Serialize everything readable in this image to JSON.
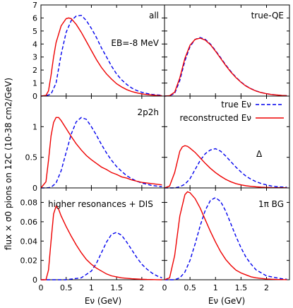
{
  "chart_data": {
    "type": "line",
    "figure": {
      "ylabel": "flux × σ0 pions on 12C (10-38 cm2/GeV)",
      "xlabel": "Eν (GeV)",
      "legend": {
        "placement": "middle-right panel, top"
      }
    },
    "colors": {
      "true": "#0000ee",
      "reconstructed": "#ee0000",
      "frame": "#000000"
    },
    "series_styles": [
      {
        "key": "true",
        "dashed": true
      },
      {
        "key": "reconstructed",
        "dashed": false
      }
    ],
    "x_ticks": [
      0,
      0.5,
      1,
      1.5,
      2
    ],
    "x_range": [
      0,
      2.45
    ],
    "panels": [
      {
        "id": "all",
        "label": "all",
        "extra_label_main": "EB=-8 MeV",
        "ylim": [
          0,
          7
        ],
        "y_ticks": [
          0,
          1,
          2,
          3,
          4,
          5,
          6,
          7
        ],
        "true": {
          "x": [
            0.0,
            0.1,
            0.2,
            0.3,
            0.4,
            0.5,
            0.6,
            0.7,
            0.8,
            0.9,
            1.0,
            1.1,
            1.2,
            1.3,
            1.4,
            1.5,
            1.6,
            1.7,
            1.8,
            1.9,
            2.0,
            2.1,
            2.2,
            2.3,
            2.4
          ],
          "y": [
            0.0,
            0.02,
            0.15,
            1.0,
            3.2,
            4.9,
            5.8,
            6.15,
            6.2,
            5.8,
            5.2,
            4.5,
            3.7,
            3.0,
            2.3,
            1.7,
            1.25,
            0.9,
            0.62,
            0.43,
            0.29,
            0.2,
            0.13,
            0.09,
            0.06
          ]
        },
        "reconstructed": {
          "x": [
            0.0,
            0.1,
            0.15,
            0.2,
            0.25,
            0.3,
            0.4,
            0.5,
            0.55,
            0.6,
            0.7,
            0.8,
            0.9,
            1.0,
            1.1,
            1.2,
            1.3,
            1.4,
            1.5,
            1.6,
            1.7,
            1.8,
            1.9,
            2.0,
            2.1,
            2.2,
            2.3,
            2.4
          ],
          "y": [
            0.0,
            0.05,
            0.4,
            1.6,
            3.0,
            4.1,
            5.4,
            5.95,
            6.0,
            5.95,
            5.5,
            4.9,
            4.2,
            3.5,
            2.8,
            2.2,
            1.7,
            1.3,
            0.95,
            0.7,
            0.5,
            0.35,
            0.25,
            0.17,
            0.12,
            0.08,
            0.05,
            0.03
          ]
        }
      },
      {
        "id": "true-qe",
        "label": "true-QE",
        "ylim": [
          0,
          7
        ],
        "y_ticks": [
          0,
          1,
          2,
          3,
          4,
          5,
          6,
          7
        ],
        "true": {
          "x": [
            0.0,
            0.1,
            0.2,
            0.3,
            0.4,
            0.5,
            0.6,
            0.7,
            0.8,
            0.9,
            1.0,
            1.1,
            1.2,
            1.3,
            1.4,
            1.5,
            1.6,
            1.7,
            1.8,
            1.9,
            2.0,
            2.1,
            2.2,
            2.3,
            2.4
          ],
          "y": [
            0.0,
            0.02,
            0.2,
            1.2,
            2.7,
            3.8,
            4.35,
            4.5,
            4.35,
            4.0,
            3.5,
            2.95,
            2.4,
            1.9,
            1.45,
            1.08,
            0.78,
            0.56,
            0.39,
            0.27,
            0.18,
            0.12,
            0.08,
            0.05,
            0.03
          ]
        },
        "reconstructed": {
          "x": [
            0.0,
            0.1,
            0.2,
            0.3,
            0.4,
            0.5,
            0.6,
            0.7,
            0.8,
            0.9,
            1.0,
            1.1,
            1.2,
            1.3,
            1.4,
            1.5,
            1.6,
            1.7,
            1.8,
            1.9,
            2.0,
            2.1,
            2.2,
            2.3,
            2.4
          ],
          "y": [
            0.0,
            0.03,
            0.3,
            1.4,
            2.9,
            3.9,
            4.35,
            4.45,
            4.3,
            3.95,
            3.45,
            2.9,
            2.35,
            1.85,
            1.42,
            1.06,
            0.76,
            0.55,
            0.38,
            0.26,
            0.18,
            0.12,
            0.08,
            0.05,
            0.03
          ]
        }
      },
      {
        "id": "2p2h",
        "label": "2p2h",
        "ylim": [
          0,
          1.5
        ],
        "y_ticks": [
          0,
          0.5,
          1
        ],
        "true": {
          "x": [
            0.0,
            0.1,
            0.2,
            0.3,
            0.4,
            0.5,
            0.6,
            0.7,
            0.8,
            0.9,
            1.0,
            1.1,
            1.2,
            1.3,
            1.4,
            1.5,
            1.6,
            1.7,
            1.8,
            1.9,
            2.0,
            2.1,
            2.2,
            2.3,
            2.4
          ],
          "y": [
            0.0,
            0.0,
            0.01,
            0.08,
            0.28,
            0.58,
            0.88,
            1.08,
            1.15,
            1.12,
            1.0,
            0.86,
            0.71,
            0.57,
            0.45,
            0.35,
            0.27,
            0.2,
            0.15,
            0.11,
            0.08,
            0.06,
            0.04,
            0.03,
            0.02
          ]
        },
        "reconstructed": {
          "x": [
            0.0,
            0.1,
            0.15,
            0.2,
            0.25,
            0.3,
            0.35,
            0.4,
            0.5,
            0.6,
            0.7,
            0.8,
            0.9,
            1.0,
            1.1,
            1.2,
            1.3,
            1.4,
            1.5,
            1.6,
            1.7,
            1.8,
            1.9,
            2.0,
            2.1,
            2.2,
            2.3,
            2.4
          ],
          "y": [
            0.0,
            0.1,
            0.45,
            0.85,
            1.07,
            1.15,
            1.15,
            1.1,
            0.97,
            0.84,
            0.72,
            0.62,
            0.53,
            0.46,
            0.4,
            0.34,
            0.3,
            0.25,
            0.22,
            0.18,
            0.16,
            0.13,
            0.11,
            0.09,
            0.08,
            0.07,
            0.06,
            0.05
          ]
        }
      },
      {
        "id": "delta",
        "label": "Δ",
        "legend": [
          {
            "key": "true",
            "text": "true Eν"
          },
          {
            "key": "reconstructed",
            "text": "reconstructed Eν"
          }
        ],
        "ylim": [
          0,
          1.5
        ],
        "y_ticks": [
          0,
          0.5,
          1
        ],
        "true": {
          "x": [
            0.0,
            0.1,
            0.2,
            0.3,
            0.4,
            0.5,
            0.6,
            0.7,
            0.8,
            0.9,
            1.0,
            1.1,
            1.2,
            1.3,
            1.4,
            1.5,
            1.6,
            1.7,
            1.8,
            1.9,
            2.0,
            2.1,
            2.2,
            2.3,
            2.4
          ],
          "y": [
            0.0,
            0.0,
            0.0,
            0.02,
            0.06,
            0.15,
            0.3,
            0.45,
            0.56,
            0.62,
            0.64,
            0.6,
            0.52,
            0.43,
            0.34,
            0.26,
            0.19,
            0.14,
            0.1,
            0.07,
            0.05,
            0.03,
            0.02,
            0.015,
            0.01
          ]
        },
        "reconstructed": {
          "x": [
            0.0,
            0.1,
            0.2,
            0.3,
            0.35,
            0.4,
            0.45,
            0.5,
            0.6,
            0.7,
            0.8,
            0.9,
            1.0,
            1.1,
            1.2,
            1.3,
            1.4,
            1.5,
            1.6,
            1.7,
            1.8,
            1.9,
            2.0,
            2.1,
            2.2,
            2.3,
            2.4
          ],
          "y": [
            0.0,
            0.03,
            0.25,
            0.6,
            0.67,
            0.69,
            0.68,
            0.65,
            0.58,
            0.49,
            0.4,
            0.32,
            0.25,
            0.19,
            0.14,
            0.1,
            0.07,
            0.05,
            0.035,
            0.025,
            0.017,
            0.012,
            0.008,
            0.005,
            0.004,
            0.003,
            0.002
          ]
        }
      },
      {
        "id": "higher-res-dis",
        "label": "higher resonances + DIS",
        "ylim": [
          0,
          0.095
        ],
        "y_ticks": [
          0,
          0.02,
          0.04,
          0.06,
          0.08
        ],
        "true": {
          "x": [
            0.0,
            0.5,
            0.8,
            1.0,
            1.1,
            1.2,
            1.3,
            1.4,
            1.5,
            1.6,
            1.7,
            1.8,
            1.9,
            2.0,
            2.1,
            2.2,
            2.3,
            2.4
          ],
          "y": [
            0.0,
            0.0,
            0.002,
            0.009,
            0.017,
            0.028,
            0.039,
            0.047,
            0.049,
            0.046,
            0.039,
            0.031,
            0.023,
            0.016,
            0.011,
            0.007,
            0.004,
            0.002
          ]
        },
        "reconstructed": {
          "x": [
            0.0,
            0.1,
            0.15,
            0.2,
            0.25,
            0.3,
            0.35,
            0.4,
            0.5,
            0.6,
            0.7,
            0.8,
            0.9,
            1.0,
            1.1,
            1.2,
            1.3,
            1.4,
            1.5,
            1.6,
            1.7,
            1.8,
            1.9,
            2.0,
            2.1,
            2.2,
            2.3,
            2.4
          ],
          "y": [
            0.0,
            0.0,
            0.01,
            0.04,
            0.068,
            0.076,
            0.073,
            0.066,
            0.055,
            0.045,
            0.036,
            0.028,
            0.021,
            0.016,
            0.012,
            0.009,
            0.006,
            0.004,
            0.003,
            0.002,
            0.0015,
            0.001,
            0.0007,
            0.0005,
            0.0003,
            0.0002,
            0.0001,
            0.0
          ]
        }
      },
      {
        "id": "1pi-bg",
        "label": "1π BG",
        "ylim": [
          0,
          0.095
        ],
        "y_ticks": [
          0,
          0.02,
          0.04,
          0.06,
          0.08
        ],
        "true": {
          "x": [
            0.0,
            0.2,
            0.3,
            0.4,
            0.5,
            0.6,
            0.7,
            0.8,
            0.9,
            1.0,
            1.1,
            1.2,
            1.3,
            1.4,
            1.5,
            1.6,
            1.7,
            1.8,
            1.9,
            2.0,
            2.1,
            2.2,
            2.3,
            2.4
          ],
          "y": [
            0.0,
            0.0,
            0.002,
            0.008,
            0.02,
            0.037,
            0.056,
            0.072,
            0.082,
            0.085,
            0.081,
            0.071,
            0.058,
            0.045,
            0.033,
            0.023,
            0.016,
            0.01,
            0.007,
            0.004,
            0.003,
            0.002,
            0.001,
            0.0005
          ]
        },
        "reconstructed": {
          "x": [
            0.0,
            0.1,
            0.2,
            0.3,
            0.4,
            0.45,
            0.5,
            0.6,
            0.7,
            0.8,
            0.9,
            1.0,
            1.1,
            1.2,
            1.3,
            1.4,
            1.5,
            1.6,
            1.7,
            1.8,
            1.9,
            2.0,
            2.1,
            2.2,
            2.3,
            2.4
          ],
          "y": [
            0.0,
            0.002,
            0.025,
            0.066,
            0.088,
            0.091,
            0.09,
            0.084,
            0.074,
            0.062,
            0.05,
            0.039,
            0.029,
            0.021,
            0.015,
            0.01,
            0.007,
            0.005,
            0.003,
            0.002,
            0.0013,
            0.0008,
            0.0005,
            0.0003,
            0.0002,
            0.0001
          ]
        }
      }
    ]
  }
}
